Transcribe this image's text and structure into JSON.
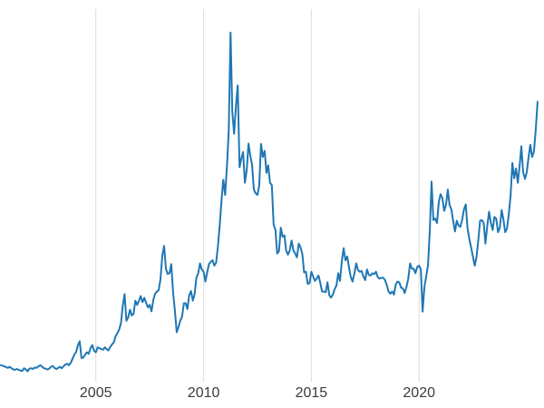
{
  "chart_data": {
    "type": "line",
    "title": "",
    "legend": "none",
    "grid": "vertical-only",
    "line_color": "#1f77b4",
    "grid_color": "#dcdcdc",
    "tick_label_color": "#3b3b3b",
    "background": "#ffffff",
    "xlim": [
      2000.55,
      2025.8
    ],
    "ylim": [
      3.5,
      51.8
    ],
    "x_ticks": [
      2005,
      2010,
      2015,
      2020
    ],
    "x_tick_labels": [
      "2005",
      "2010",
      "2015",
      "2020"
    ],
    "x_start_year": 2000.5833,
    "x_step_years": 0.0833333,
    "values": [
      4.95,
      4.9,
      4.8,
      4.7,
      4.6,
      4.75,
      4.55,
      4.4,
      4.35,
      4.45,
      4.35,
      4.25,
      4.2,
      4.55,
      4.4,
      4.15,
      4.5,
      4.55,
      4.45,
      4.65,
      4.6,
      4.8,
      4.95,
      4.8,
      4.55,
      4.5,
      4.4,
      4.5,
      4.75,
      4.85,
      4.6,
      4.45,
      4.6,
      4.75,
      4.55,
      4.8,
      5.05,
      5.15,
      4.95,
      5.25,
      5.8,
      6.35,
      6.7,
      7.55,
      8.1,
      5.9,
      5.95,
      6.35,
      6.65,
      6.45,
      7.2,
      7.6,
      6.85,
      6.65,
      7.3,
      7.2,
      7.05,
      7.0,
      7.3,
      7.05,
      6.9,
      7.35,
      7.7,
      7.95,
      8.8,
      9.15,
      9.65,
      10.55,
      12.8,
      14.3,
      10.8,
      11.25,
      12.25,
      11.5,
      11.7,
      13.45,
      12.9,
      13.45,
      14.05,
      13.25,
      13.8,
      13.15,
      12.55,
      12.9,
      12.05,
      13.55,
      14.35,
      14.65,
      14.8,
      16.25,
      19.35,
      20.65,
      17.65,
      16.95,
      17.05,
      18.25,
      14.55,
      12.1,
      9.3,
      9.95,
      10.8,
      11.35,
      13.1,
      13.1,
      12.35,
      14.15,
      14.7,
      13.45,
      14.35,
      16.45,
      17.05,
      18.35,
      17.55,
      17.25,
      15.95,
      17.15,
      18.25,
      18.55,
      18.75,
      18.05,
      18.45,
      20.65,
      23.45,
      26.75,
      29.35,
      27.35,
      31.05,
      35.85,
      48.7,
      38.3,
      35.4,
      39.0,
      41.75,
      31.0,
      32.1,
      33.0,
      28.95,
      30.6,
      34.1,
      32.55,
      31.35,
      28.05,
      27.55,
      27.35,
      28.6,
      34.05,
      32.35,
      33.15,
      30.25,
      31.25,
      28.95,
      28.65,
      23.45,
      22.75,
      19.65,
      19.95,
      23.05,
      21.85,
      22.05,
      20.05,
      19.5,
      20.05,
      21.35,
      20.05,
      19.65,
      19.15,
      20.95,
      20.45,
      19.55,
      17.15,
      17.25,
      15.65,
      15.75,
      17.25,
      16.65,
      16.05,
      16.35,
      16.75,
      15.75,
      14.65,
      14.65,
      14.55,
      15.85,
      14.15,
      13.85,
      14.25,
      14.95,
      15.45,
      17.05,
      16.05,
      18.65,
      20.35,
      18.75,
      19.25,
      17.85,
      16.55,
      15.95,
      17.05,
      18.35,
      17.45,
      17.25,
      17.35,
      16.65,
      16.15,
      17.55,
      16.85,
      16.75,
      17.05,
      16.95,
      17.25,
      16.55,
      16.35,
      16.45,
      16.45,
      16.15,
      15.55,
      14.65,
      14.35,
      14.65,
      14.25,
      15.55,
      15.95,
      15.85,
      15.15,
      15.05,
      14.45,
      15.25,
      16.35,
      18.35,
      17.65,
      17.65,
      17.05,
      17.9,
      18.05,
      17.55,
      12.0,
      15.25,
      16.65,
      18.15,
      22.85,
      29.1,
      24.05,
      24.25,
      23.65,
      26.45,
      27.45,
      26.95,
      25.25,
      26.05,
      28.05,
      26.05,
      25.45,
      23.95,
      22.55,
      23.95,
      23.35,
      23.15,
      24.05,
      25.45,
      26.1,
      23.05,
      21.55,
      20.45,
      19.25,
      18.05,
      19.15,
      21.35,
      23.95,
      24.05,
      23.65,
      20.95,
      23.25,
      25.15,
      23.65,
      22.75,
      24.45,
      24.25,
      22.45,
      23.05,
      25.35,
      24.15,
      22.45,
      22.95,
      24.85,
      27.35,
      31.55,
      29.55,
      30.85,
      28.95,
      31.15,
      33.75,
      30.35,
      29.45,
      30.35,
      32.35,
      33.95,
      32.35,
      33.05,
      35.95,
      39.6
    ]
  }
}
